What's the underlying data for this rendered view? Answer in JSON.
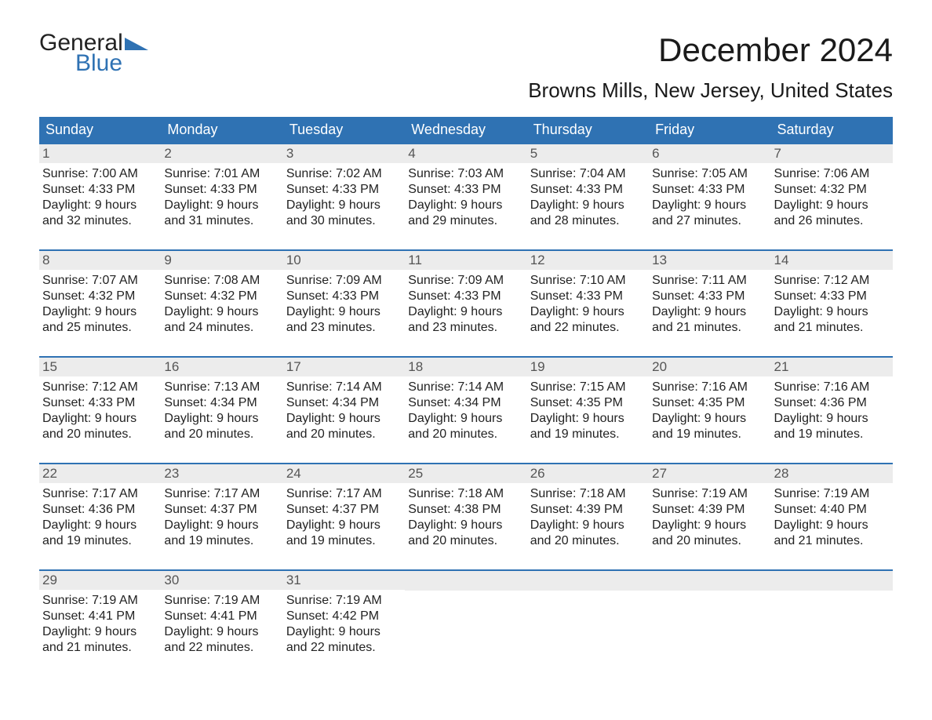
{
  "logo": {
    "word1": "General",
    "word2": "Blue",
    "accent_color": "#2f72b3"
  },
  "title": "December 2024",
  "location": "Browns Mills, New Jersey, United States",
  "colors": {
    "header_bg": "#2f72b3",
    "header_text": "#ffffff",
    "daynum_bg": "#ececec",
    "daynum_text": "#555555",
    "rule": "#2f72b3",
    "body_text": "#222222",
    "page_bg": "#ffffff"
  },
  "weekdays": [
    "Sunday",
    "Monday",
    "Tuesday",
    "Wednesday",
    "Thursday",
    "Friday",
    "Saturday"
  ],
  "weeks": [
    [
      {
        "n": "1",
        "sunrise": "Sunrise: 7:00 AM",
        "sunset": "Sunset: 4:33 PM",
        "d1": "Daylight: 9 hours",
        "d2": "and 32 minutes."
      },
      {
        "n": "2",
        "sunrise": "Sunrise: 7:01 AM",
        "sunset": "Sunset: 4:33 PM",
        "d1": "Daylight: 9 hours",
        "d2": "and 31 minutes."
      },
      {
        "n": "3",
        "sunrise": "Sunrise: 7:02 AM",
        "sunset": "Sunset: 4:33 PM",
        "d1": "Daylight: 9 hours",
        "d2": "and 30 minutes."
      },
      {
        "n": "4",
        "sunrise": "Sunrise: 7:03 AM",
        "sunset": "Sunset: 4:33 PM",
        "d1": "Daylight: 9 hours",
        "d2": "and 29 minutes."
      },
      {
        "n": "5",
        "sunrise": "Sunrise: 7:04 AM",
        "sunset": "Sunset: 4:33 PM",
        "d1": "Daylight: 9 hours",
        "d2": "and 28 minutes."
      },
      {
        "n": "6",
        "sunrise": "Sunrise: 7:05 AM",
        "sunset": "Sunset: 4:33 PM",
        "d1": "Daylight: 9 hours",
        "d2": "and 27 minutes."
      },
      {
        "n": "7",
        "sunrise": "Sunrise: 7:06 AM",
        "sunset": "Sunset: 4:32 PM",
        "d1": "Daylight: 9 hours",
        "d2": "and 26 minutes."
      }
    ],
    [
      {
        "n": "8",
        "sunrise": "Sunrise: 7:07 AM",
        "sunset": "Sunset: 4:32 PM",
        "d1": "Daylight: 9 hours",
        "d2": "and 25 minutes."
      },
      {
        "n": "9",
        "sunrise": "Sunrise: 7:08 AM",
        "sunset": "Sunset: 4:32 PM",
        "d1": "Daylight: 9 hours",
        "d2": "and 24 minutes."
      },
      {
        "n": "10",
        "sunrise": "Sunrise: 7:09 AM",
        "sunset": "Sunset: 4:33 PM",
        "d1": "Daylight: 9 hours",
        "d2": "and 23 minutes."
      },
      {
        "n": "11",
        "sunrise": "Sunrise: 7:09 AM",
        "sunset": "Sunset: 4:33 PM",
        "d1": "Daylight: 9 hours",
        "d2": "and 23 minutes."
      },
      {
        "n": "12",
        "sunrise": "Sunrise: 7:10 AM",
        "sunset": "Sunset: 4:33 PM",
        "d1": "Daylight: 9 hours",
        "d2": "and 22 minutes."
      },
      {
        "n": "13",
        "sunrise": "Sunrise: 7:11 AM",
        "sunset": "Sunset: 4:33 PM",
        "d1": "Daylight: 9 hours",
        "d2": "and 21 minutes."
      },
      {
        "n": "14",
        "sunrise": "Sunrise: 7:12 AM",
        "sunset": "Sunset: 4:33 PM",
        "d1": "Daylight: 9 hours",
        "d2": "and 21 minutes."
      }
    ],
    [
      {
        "n": "15",
        "sunrise": "Sunrise: 7:12 AM",
        "sunset": "Sunset: 4:33 PM",
        "d1": "Daylight: 9 hours",
        "d2": "and 20 minutes."
      },
      {
        "n": "16",
        "sunrise": "Sunrise: 7:13 AM",
        "sunset": "Sunset: 4:34 PM",
        "d1": "Daylight: 9 hours",
        "d2": "and 20 minutes."
      },
      {
        "n": "17",
        "sunrise": "Sunrise: 7:14 AM",
        "sunset": "Sunset: 4:34 PM",
        "d1": "Daylight: 9 hours",
        "d2": "and 20 minutes."
      },
      {
        "n": "18",
        "sunrise": "Sunrise: 7:14 AM",
        "sunset": "Sunset: 4:34 PM",
        "d1": "Daylight: 9 hours",
        "d2": "and 20 minutes."
      },
      {
        "n": "19",
        "sunrise": "Sunrise: 7:15 AM",
        "sunset": "Sunset: 4:35 PM",
        "d1": "Daylight: 9 hours",
        "d2": "and 19 minutes."
      },
      {
        "n": "20",
        "sunrise": "Sunrise: 7:16 AM",
        "sunset": "Sunset: 4:35 PM",
        "d1": "Daylight: 9 hours",
        "d2": "and 19 minutes."
      },
      {
        "n": "21",
        "sunrise": "Sunrise: 7:16 AM",
        "sunset": "Sunset: 4:36 PM",
        "d1": "Daylight: 9 hours",
        "d2": "and 19 minutes."
      }
    ],
    [
      {
        "n": "22",
        "sunrise": "Sunrise: 7:17 AM",
        "sunset": "Sunset: 4:36 PM",
        "d1": "Daylight: 9 hours",
        "d2": "and 19 minutes."
      },
      {
        "n": "23",
        "sunrise": "Sunrise: 7:17 AM",
        "sunset": "Sunset: 4:37 PM",
        "d1": "Daylight: 9 hours",
        "d2": "and 19 minutes."
      },
      {
        "n": "24",
        "sunrise": "Sunrise: 7:17 AM",
        "sunset": "Sunset: 4:37 PM",
        "d1": "Daylight: 9 hours",
        "d2": "and 19 minutes."
      },
      {
        "n": "25",
        "sunrise": "Sunrise: 7:18 AM",
        "sunset": "Sunset: 4:38 PM",
        "d1": "Daylight: 9 hours",
        "d2": "and 20 minutes."
      },
      {
        "n": "26",
        "sunrise": "Sunrise: 7:18 AM",
        "sunset": "Sunset: 4:39 PM",
        "d1": "Daylight: 9 hours",
        "d2": "and 20 minutes."
      },
      {
        "n": "27",
        "sunrise": "Sunrise: 7:19 AM",
        "sunset": "Sunset: 4:39 PM",
        "d1": "Daylight: 9 hours",
        "d2": "and 20 minutes."
      },
      {
        "n": "28",
        "sunrise": "Sunrise: 7:19 AM",
        "sunset": "Sunset: 4:40 PM",
        "d1": "Daylight: 9 hours",
        "d2": "and 21 minutes."
      }
    ],
    [
      {
        "n": "29",
        "sunrise": "Sunrise: 7:19 AM",
        "sunset": "Sunset: 4:41 PM",
        "d1": "Daylight: 9 hours",
        "d2": "and 21 minutes."
      },
      {
        "n": "30",
        "sunrise": "Sunrise: 7:19 AM",
        "sunset": "Sunset: 4:41 PM",
        "d1": "Daylight: 9 hours",
        "d2": "and 22 minutes."
      },
      {
        "n": "31",
        "sunrise": "Sunrise: 7:19 AM",
        "sunset": "Sunset: 4:42 PM",
        "d1": "Daylight: 9 hours",
        "d2": "and 22 minutes."
      },
      null,
      null,
      null,
      null
    ]
  ]
}
